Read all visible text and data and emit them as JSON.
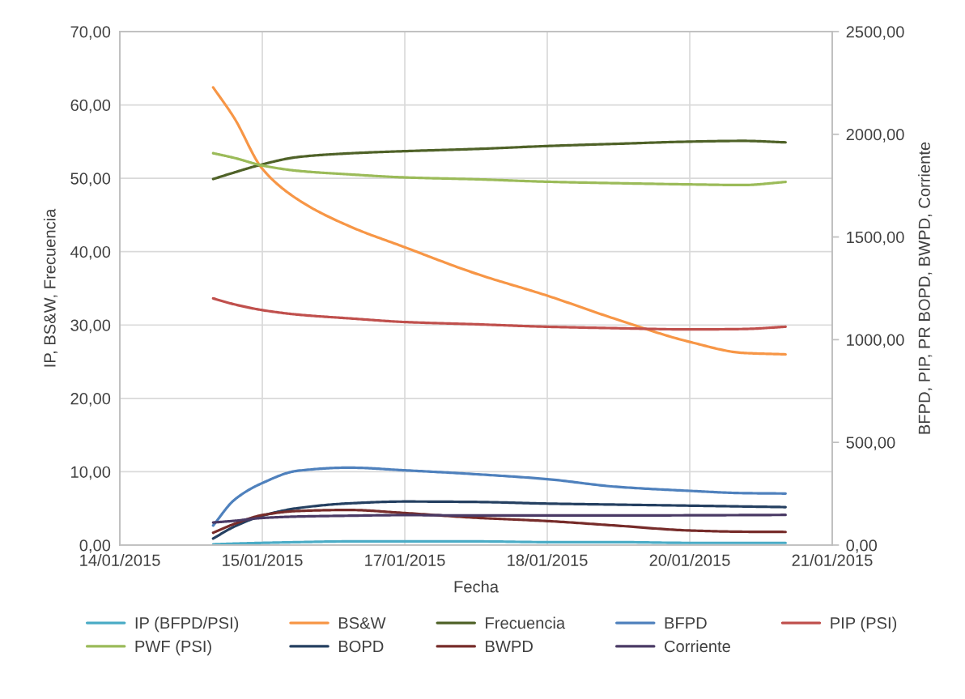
{
  "chart_data": {
    "type": "line",
    "xlabel": "Fecha",
    "ylabel": "IP, BS&W, Frecuencia",
    "y2label": "BFPD, PIP, PR BOPD, BWPD, Corriente",
    "x": [
      "2015-01-14T22:00",
      "2015-01-15T03:00",
      "2015-01-15T09:36",
      "2015-01-15T18:00",
      "2015-01-16T06:00",
      "2015-01-16T19:12",
      "2015-01-17T12:00",
      "2015-01-18T04:48",
      "2015-01-18T21:00",
      "2015-01-19T14:24",
      "2015-01-20T03:00",
      "2015-01-20T13:00"
    ],
    "xlim": [
      "2015-01-14",
      "2015-01-21"
    ],
    "xticks": [
      {
        "value": "2015-01-14",
        "label": "14/01/2015"
      },
      {
        "value": "2015-01-15T09:36",
        "label": "15/01/2015"
      },
      {
        "value": "2015-01-16T19:12",
        "label": "17/01/2015"
      },
      {
        "value": "2015-01-18T04:48",
        "label": "18/01/2015"
      },
      {
        "value": "2015-01-19T14:24",
        "label": "20/01/2015"
      },
      {
        "value": "2015-01-21",
        "label": "21/01/2015"
      }
    ],
    "ylim": [
      0,
      70
    ],
    "yticks": [
      {
        "value": 0,
        "label": "0,00"
      },
      {
        "value": 10,
        "label": "10,00"
      },
      {
        "value": 20,
        "label": "20,00"
      },
      {
        "value": 30,
        "label": "30,00"
      },
      {
        "value": 40,
        "label": "40,00"
      },
      {
        "value": 50,
        "label": "50,00"
      },
      {
        "value": 60,
        "label": "60,00"
      },
      {
        "value": 70,
        "label": "70,00"
      }
    ],
    "y2lim": [
      0,
      2500
    ],
    "y2ticks": [
      {
        "value": 0,
        "label": "0,00"
      },
      {
        "value": 500,
        "label": "500,00"
      },
      {
        "value": 1000,
        "label": "1000,00"
      },
      {
        "value": 1500,
        "label": "1500,00"
      },
      {
        "value": 2000,
        "label": "2000,00"
      },
      {
        "value": 2500,
        "label": "2500,00"
      }
    ],
    "grid": true,
    "legend": "bottom",
    "line_style": "solid",
    "series": [
      {
        "name": "IP (BFPD/PSI)",
        "color": "#4bacc6",
        "values": [
          0.1,
          0.2,
          0.3,
          0.4,
          0.5,
          0.5,
          0.5,
          0.4,
          0.4,
          0.3,
          0.3,
          0.3
        ]
      },
      {
        "name": "BS&W",
        "color": "#f79646",
        "values": [
          62.4,
          58.2,
          51.3,
          47.1,
          43.5,
          40.6,
          37.0,
          34.0,
          30.8,
          27.7,
          26.2,
          26.0
        ]
      },
      {
        "name": "Frecuencia",
        "color": "#4f6228",
        "values": [
          49.9,
          50.8,
          51.9,
          52.9,
          53.4,
          53.7,
          54.0,
          54.4,
          54.7,
          55.0,
          55.1,
          54.9
        ]
      },
      {
        "name": "BFPD",
        "color": "#4f81bd",
        "axis": "y2",
        "values": [
          95,
          220,
          302,
          362,
          377,
          364,
          345,
          321,
          284,
          264,
          253,
          251
        ]
      },
      {
        "name": "PIP (PSI)",
        "color": "#c0504d",
        "axis": "y2",
        "values": [
          1201,
          1172,
          1144,
          1122,
          1104,
          1086,
          1075,
          1063,
          1056,
          1050,
          1052,
          1063
        ]
      },
      {
        "name": "PWF (PSI)",
        "color": "#9bbb59",
        "axis": "y2",
        "values": [
          1908,
          1885,
          1848,
          1822,
          1805,
          1790,
          1781,
          1769,
          1762,
          1756,
          1753,
          1768
        ]
      },
      {
        "name": "BOPD",
        "color": "#254061",
        "axis": "y2",
        "values": [
          32,
          90,
          143,
          180,
          203,
          212,
          210,
          202,
          197,
          192,
          188,
          185
        ]
      },
      {
        "name": "BWPD",
        "color": "#772c2a",
        "axis": "y2",
        "values": [
          60,
          103,
          146,
          166,
          171,
          156,
          133,
          117,
          95,
          71,
          65,
          64
        ]
      },
      {
        "name": "Corriente",
        "color": "#4a3a65",
        "axis": "y2",
        "values": [
          110,
          118,
          132,
          139,
          143,
          146,
          144,
          144,
          144,
          145,
          146,
          147
        ]
      }
    ]
  }
}
